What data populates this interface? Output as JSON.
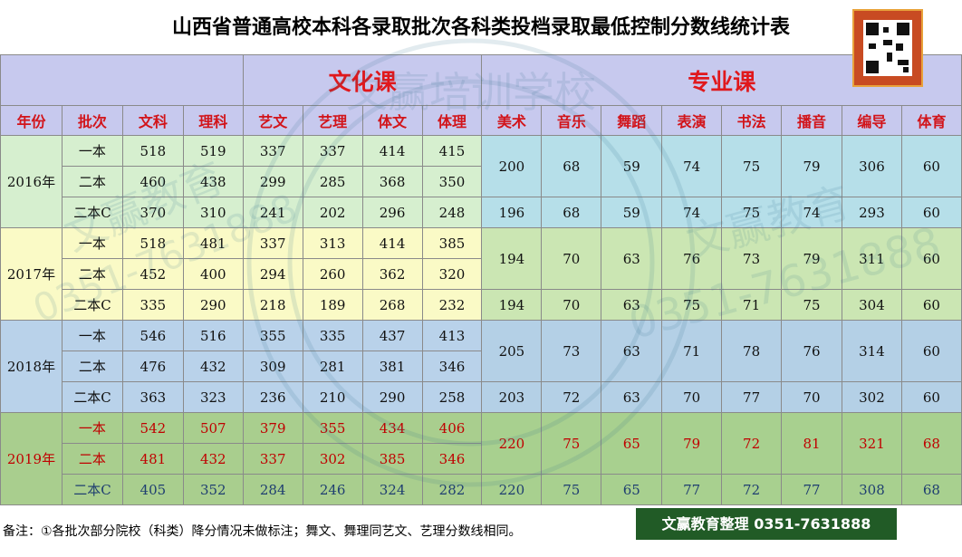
{
  "title": "山西省普通高校本科各录取批次各科类投档录取最低控制分数线统计表",
  "group_headers": {
    "culture": "文化课",
    "professional": "专业课"
  },
  "columns": [
    "年份",
    "批次",
    "文科",
    "理科",
    "艺文",
    "艺理",
    "体文",
    "体理",
    "美术",
    "音乐",
    "舞蹈",
    "表演",
    "书法",
    "播音",
    "编导",
    "体育"
  ],
  "years": [
    {
      "year": "2016年",
      "rows": [
        {
          "batch": "一本",
          "culture": [
            "518",
            "519",
            "337",
            "337",
            "414",
            "415"
          ]
        },
        {
          "batch": "二本",
          "culture": [
            "460",
            "438",
            "299",
            "285",
            "368",
            "350"
          ]
        },
        {
          "batch": "二本C",
          "culture": [
            "370",
            "310",
            "241",
            "202",
            "296",
            "248"
          ]
        }
      ],
      "prof_top": [
        "200",
        "68",
        "59",
        "74",
        "75",
        "79",
        "306",
        "60"
      ],
      "prof_c": [
        "196",
        "68",
        "59",
        "74",
        "75",
        "74",
        "293",
        "60"
      ]
    },
    {
      "year": "2017年",
      "rows": [
        {
          "batch": "一本",
          "culture": [
            "518",
            "481",
            "337",
            "313",
            "414",
            "385"
          ]
        },
        {
          "batch": "二本",
          "culture": [
            "452",
            "400",
            "294",
            "260",
            "362",
            "320"
          ]
        },
        {
          "batch": "二本C",
          "culture": [
            "335",
            "290",
            "218",
            "189",
            "268",
            "232"
          ]
        }
      ],
      "prof_top": [
        "194",
        "70",
        "63",
        "76",
        "73",
        "79",
        "311",
        "60"
      ],
      "prof_c": [
        "194",
        "70",
        "63",
        "75",
        "71",
        "75",
        "304",
        "60"
      ]
    },
    {
      "year": "2018年",
      "rows": [
        {
          "batch": "一本",
          "culture": [
            "546",
            "516",
            "355",
            "335",
            "437",
            "413"
          ]
        },
        {
          "batch": "二本",
          "culture": [
            "476",
            "432",
            "309",
            "281",
            "381",
            "346"
          ]
        },
        {
          "batch": "二本C",
          "culture": [
            "363",
            "323",
            "236",
            "210",
            "290",
            "258"
          ]
        }
      ],
      "prof_top": [
        "205",
        "73",
        "63",
        "71",
        "78",
        "76",
        "314",
        "60"
      ],
      "prof_c": [
        "203",
        "72",
        "63",
        "70",
        "77",
        "70",
        "302",
        "60"
      ]
    },
    {
      "year": "2019年",
      "rows": [
        {
          "batch": "一本",
          "culture": [
            "542",
            "507",
            "379",
            "355",
            "434",
            "406"
          ]
        },
        {
          "batch": "二本",
          "culture": [
            "481",
            "432",
            "337",
            "302",
            "385",
            "346"
          ]
        },
        {
          "batch": "二本C",
          "culture": [
            "405",
            "352",
            "284",
            "246",
            "324",
            "282"
          ]
        }
      ],
      "prof_top": [
        "220",
        "75",
        "65",
        "79",
        "72",
        "81",
        "321",
        "68"
      ],
      "prof_c": [
        "220",
        "75",
        "65",
        "77",
        "72",
        "77",
        "308",
        "68"
      ]
    }
  ],
  "footer_note": "备注：①各批次部分院校（科类）降分情况未做标注；舞文、舞理同艺文、艺理分数线相同。",
  "badge_text": "文赢教育整理  0351-7631888",
  "watermark": {
    "brand": "文赢教育",
    "phone": "0351-7631888",
    "seal_top": "文赢培训学校"
  },
  "colors": {
    "header_red": "#e0181c",
    "header_bg": "#c7c9ee",
    "badge_bg": "#215b26",
    "row_2019_red": "#c00000",
    "row_2019_blue": "#1f3e70"
  }
}
